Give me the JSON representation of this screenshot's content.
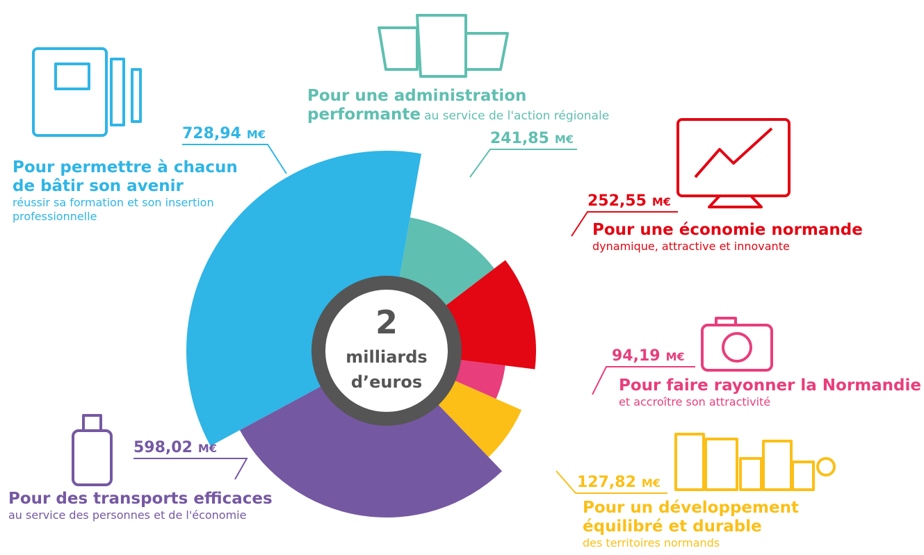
{
  "chart_data": {
    "type": "pie",
    "unit": "M€",
    "center_label": [
      "2",
      "milliards",
      "d’euros"
    ],
    "categories": [
      {
        "name": "Pour une administration performante",
        "description": "au service de l'action régionale"
      },
      {
        "name": "Pour une économie normande",
        "description": "dynamique, attractive et innovante"
      },
      {
        "name": "Pour faire rayonner la Normandie",
        "description": "et accroître son attractivité"
      },
      {
        "name": "Pour un développement équilibré et durable",
        "description": "des territoires normands"
      },
      {
        "name": "Pour des transports efficaces",
        "description": "au service des personnes et de l'économie"
      },
      {
        "name": "Pour permettre à chacun de bâtir son avenir",
        "description": "réussir sa formation et son insertion professionnelle"
      }
    ],
    "values": [
      241.85,
      252.55,
      94.19,
      127.82,
      598.02,
      728.94
    ],
    "value_labels": [
      "241,85",
      "252,55",
      "94,19",
      "127,82",
      "598,02",
      "728,94"
    ],
    "colors": [
      "#5fbfb0",
      "#e30613",
      "#e83e7c",
      "#fbbf17",
      "#7558a2",
      "#2fb5e6"
    ]
  }
}
